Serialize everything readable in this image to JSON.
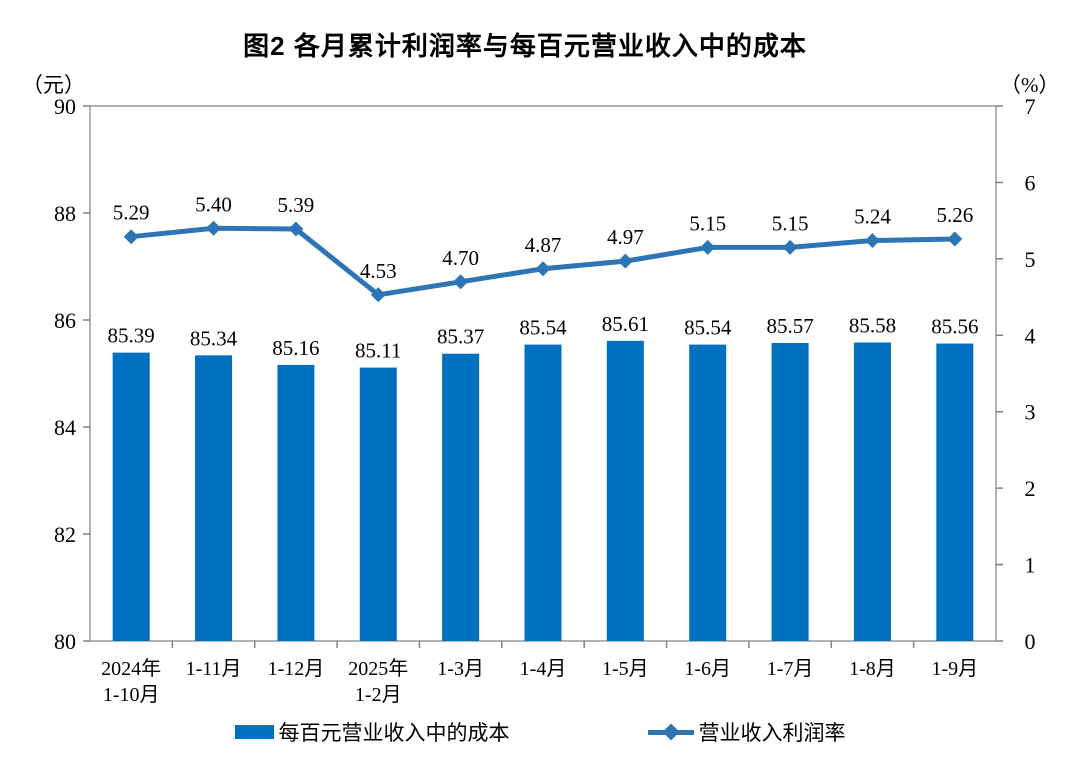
{
  "chart_data": {
    "type": "bar+line combo",
    "title": "图2 各月累计利润率与每百元营业收入中的成本",
    "categories": [
      "2024年\n1-10月",
      "1-11月",
      "1-12月",
      "2025年\n1-2月",
      "1-3月",
      "1-4月",
      "1-5月",
      "1-6月",
      "1-7月",
      "1-8月",
      "1-9月"
    ],
    "series": [
      {
        "name": "每百元营业收入中的成本",
        "type": "bar",
        "axis": "left",
        "color": "#0070C0",
        "values": [
          85.39,
          85.34,
          85.16,
          85.11,
          85.37,
          85.54,
          85.61,
          85.54,
          85.57,
          85.58,
          85.56
        ]
      },
      {
        "name": "营业收入利润率",
        "type": "line",
        "axis": "right",
        "color": "#2E75B6",
        "marker": "diamond",
        "values": [
          5.29,
          5.4,
          5.39,
          4.53,
          4.7,
          4.87,
          4.97,
          5.15,
          5.15,
          5.24,
          5.26
        ]
      }
    ],
    "left_axis": {
      "unit": "（元）",
      "min": 80,
      "max": 90,
      "ticks": [
        90,
        88,
        86,
        84,
        82,
        80
      ]
    },
    "right_axis": {
      "unit": "（%）",
      "min": 0,
      "max": 7,
      "ticks": [
        7,
        6,
        5,
        4,
        3,
        2,
        1,
        0
      ]
    },
    "legend_position": "bottom",
    "grid": false,
    "value_label_decimals": 2
  },
  "colors": {
    "bar": "#0070C0",
    "line": "#2E75B6",
    "frame": "#999999",
    "tick": "#808080",
    "text": "#000000"
  }
}
